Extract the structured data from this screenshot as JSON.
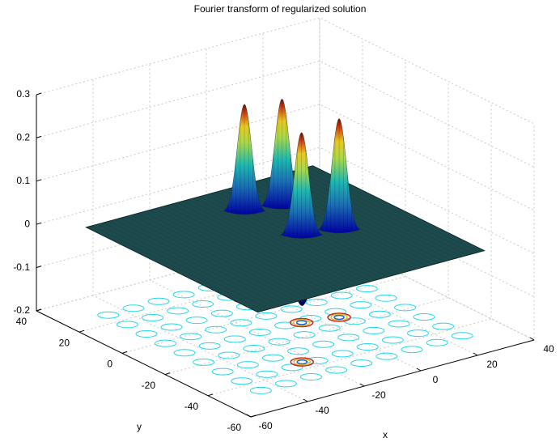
{
  "chart_data": {
    "type": "surface",
    "title": "Fourier transform of regularized solution",
    "x_label": "x",
    "y_label": "y",
    "xlim": [
      -60,
      40
    ],
    "ylim": [
      -60,
      40
    ],
    "zlim": [
      -0.2,
      0.3
    ],
    "xticks": [
      -60,
      -40,
      -20,
      0,
      20,
      40
    ],
    "yticks": [
      -60,
      -40,
      -20,
      0,
      20,
      40
    ],
    "zticks": [
      -0.2,
      -0.1,
      0,
      0.1,
      0.2,
      0.3
    ],
    "grid": true,
    "surface_color": "#1d4a4c",
    "contour_color": "#22d8e8",
    "peaks": [
      {
        "x": 4,
        "y": 10,
        "z": 0.25
      },
      {
        "x": -7,
        "y": 13,
        "z": 0.25
      },
      {
        "x": 6,
        "y": -14,
        "z": 0.26
      },
      {
        "x": -5,
        "y": -11,
        "z": 0.24
      },
      {
        "x": -23,
        "y": -35,
        "z": -0.07
      }
    ]
  }
}
